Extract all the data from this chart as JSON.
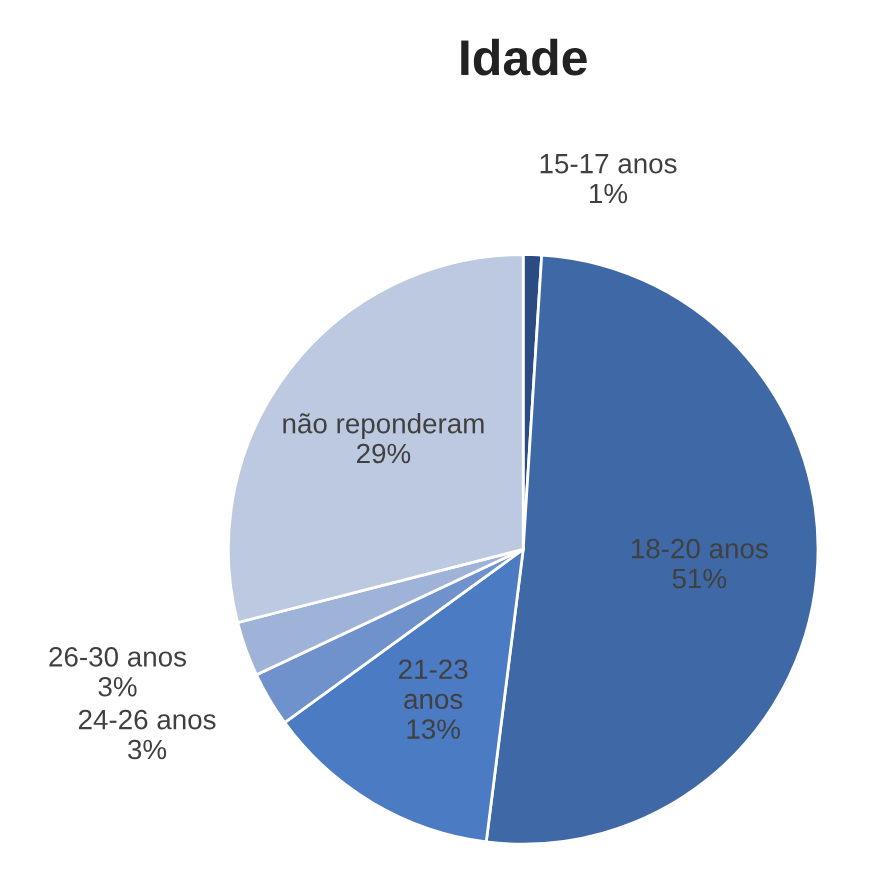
{
  "chart_data": {
    "type": "pie",
    "title": "Idade",
    "categories": [
      "15-17 anos",
      "18-20 anos",
      "21-23 anos",
      "24-26 anos",
      "26-30 anos",
      "não reponderam"
    ],
    "values": [
      1,
      51,
      13,
      3,
      3,
      29
    ],
    "colors": [
      "#2b4c82",
      "#3f69a6",
      "#4a7bc3",
      "#6f92cc",
      "#9fb3d8",
      "#bdc9e1"
    ],
    "value_labels": [
      "1%",
      "51%",
      "13%",
      "3%",
      "3%",
      "29%"
    ]
  }
}
